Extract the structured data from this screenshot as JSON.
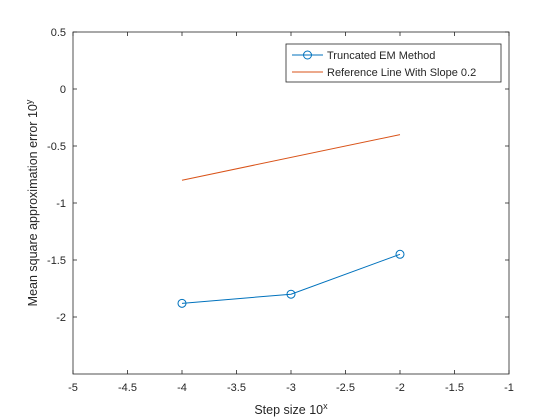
{
  "chart_data": {
    "type": "line",
    "title": "",
    "xlabel": "Step size 10",
    "xlabel_sup": "x",
    "ylabel": "Mean square approximation error 10",
    "ylabel_sup": "y",
    "xlim": [
      -5,
      -1
    ],
    "ylim": [
      -2.5,
      0.5
    ],
    "xticks": [
      -5,
      -4.5,
      -4,
      -3.5,
      -3,
      -2.5,
      -2,
      -1.5,
      -1
    ],
    "xtick_labels": [
      "-5",
      "-4.5",
      "-4",
      "-3.5",
      "-3",
      "-2.5",
      "-2",
      "-1.5",
      "-1"
    ],
    "yticks": [
      -2,
      -1.5,
      -1,
      -0.5,
      0,
      0.5
    ],
    "ytick_labels": [
      "-2",
      "-1.5",
      "-1",
      "-0.5",
      "0",
      "0.5"
    ],
    "grid": false,
    "legend_position": "top-right",
    "series": [
      {
        "name": "Truncated EM Method",
        "color": "#0072BD",
        "marker": "circle",
        "x": [
          -4,
          -3,
          -2
        ],
        "y": [
          -1.88,
          -1.8,
          -1.45
        ]
      },
      {
        "name": "Reference Line With Slope 0.2",
        "color": "#D95319",
        "marker": "none",
        "x": [
          -4,
          -2
        ],
        "y": [
          -0.8,
          -0.4
        ]
      }
    ]
  }
}
